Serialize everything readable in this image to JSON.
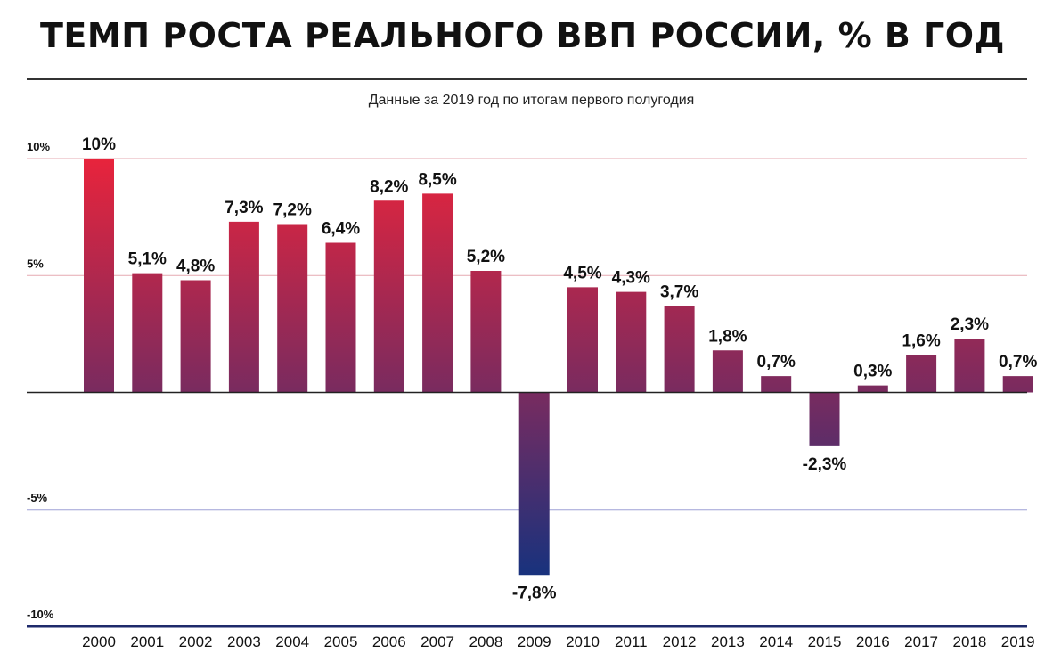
{
  "colors": {
    "bar_top": "#e8243c",
    "bar_mid": "#7a2b5f",
    "bar_bottom": "#16327e",
    "grid_positive": "#e6a9b1",
    "grid_negative": "#9da0d6",
    "zero_line": "#222222",
    "bottom_axis": "#1e2a6b"
  },
  "chart_data": {
    "type": "bar",
    "title": "ТЕМП РОСТА РЕАЛЬНОГО ВВП РОССИИ, % В ГОД",
    "subtitle": "Данные за 2019 год по итогам первого полугодия",
    "xlabel": "",
    "ylabel": "",
    "ylim": [
      -10,
      10
    ],
    "yticks": [
      10,
      5,
      -5,
      -10
    ],
    "ytick_labels": [
      "10%",
      "5%",
      "-5%",
      "-10%"
    ],
    "categories": [
      "2000",
      "2001",
      "2002",
      "2003",
      "2004",
      "2005",
      "2006",
      "2007",
      "2008",
      "2009",
      "2010",
      "2011",
      "2012",
      "2013",
      "2014",
      "2015",
      "2016",
      "2017",
      "2018",
      "2019"
    ],
    "values": [
      10,
      5.1,
      4.8,
      7.3,
      7.2,
      6.4,
      8.2,
      8.5,
      5.2,
      -7.8,
      4.5,
      4.3,
      3.7,
      1.8,
      0.7,
      -2.3,
      0.3,
      1.6,
      2.3,
      0.7
    ],
    "value_labels": [
      "10%",
      "5,1%",
      "4,8%",
      "7,3%",
      "7,2%",
      "6,4%",
      "8,2%",
      "8,5%",
      "5,2%",
      "-7,8%",
      "4,5%",
      "4,3%",
      "3,7%",
      "1,8%",
      "0,7%",
      "-2,3%",
      "0,3%",
      "1,6%",
      "2,3%",
      "0,7%"
    ],
    "grid": true,
    "legend": "none"
  }
}
